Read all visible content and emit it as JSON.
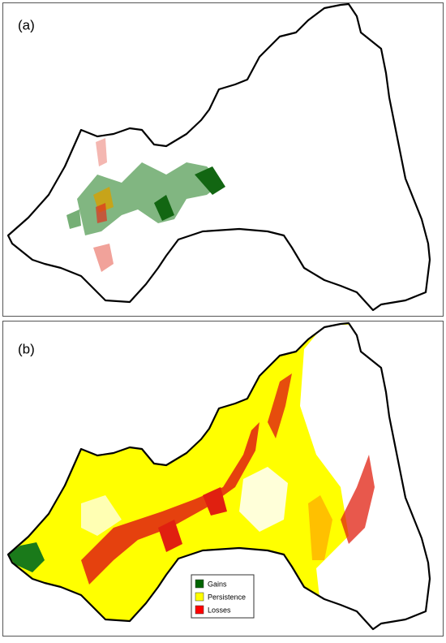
{
  "panels": [
    {
      "label": "(a)"
    },
    {
      "label": "(b)",
      "legend": [
        "Gains",
        "Persistence",
        "Losses"
      ]
    }
  ]
}
